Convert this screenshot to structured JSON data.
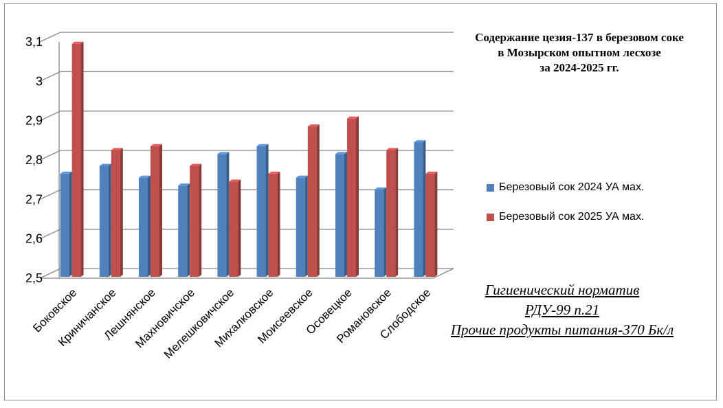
{
  "chart_data": {
    "type": "bar",
    "title_lines": [
      "Содержание цезия-137 в березовом соке",
      "в Мозырском опытном лесхозе",
      "за 2024-2025 гг."
    ],
    "categories": [
      "Боковское",
      "Криничанское",
      "Лешнянское",
      "Махновичское",
      "Мелешковичское",
      "Михалковское",
      "Моисеевское",
      "Осовецкое",
      "Романовское",
      "Слободское"
    ],
    "series": [
      {
        "name": "Березовый сок 2024 УА мах.",
        "color": "#4f81bd",
        "values": [
          2.76,
          2.78,
          2.75,
          2.73,
          2.81,
          2.83,
          2.75,
          2.81,
          2.72,
          2.84
        ]
      },
      {
        "name": "Березовый сок 2025 УА мах.",
        "color": "#c0504d",
        "values": [
          3.09,
          2.82,
          2.83,
          2.78,
          2.74,
          2.76,
          2.88,
          2.9,
          2.82,
          2.76
        ]
      }
    ],
    "yticks": [
      "2,5",
      "2,6",
      "2,7",
      "2,8",
      "2,9",
      "3",
      "3,1"
    ],
    "ylim": [
      2.5,
      3.1
    ],
    "grid": true,
    "legend": "right"
  },
  "note_lines": [
    "Гигиенический норматив",
    "РДУ-99 п.21",
    "Прочие продукты питания-370 Бк/л"
  ]
}
